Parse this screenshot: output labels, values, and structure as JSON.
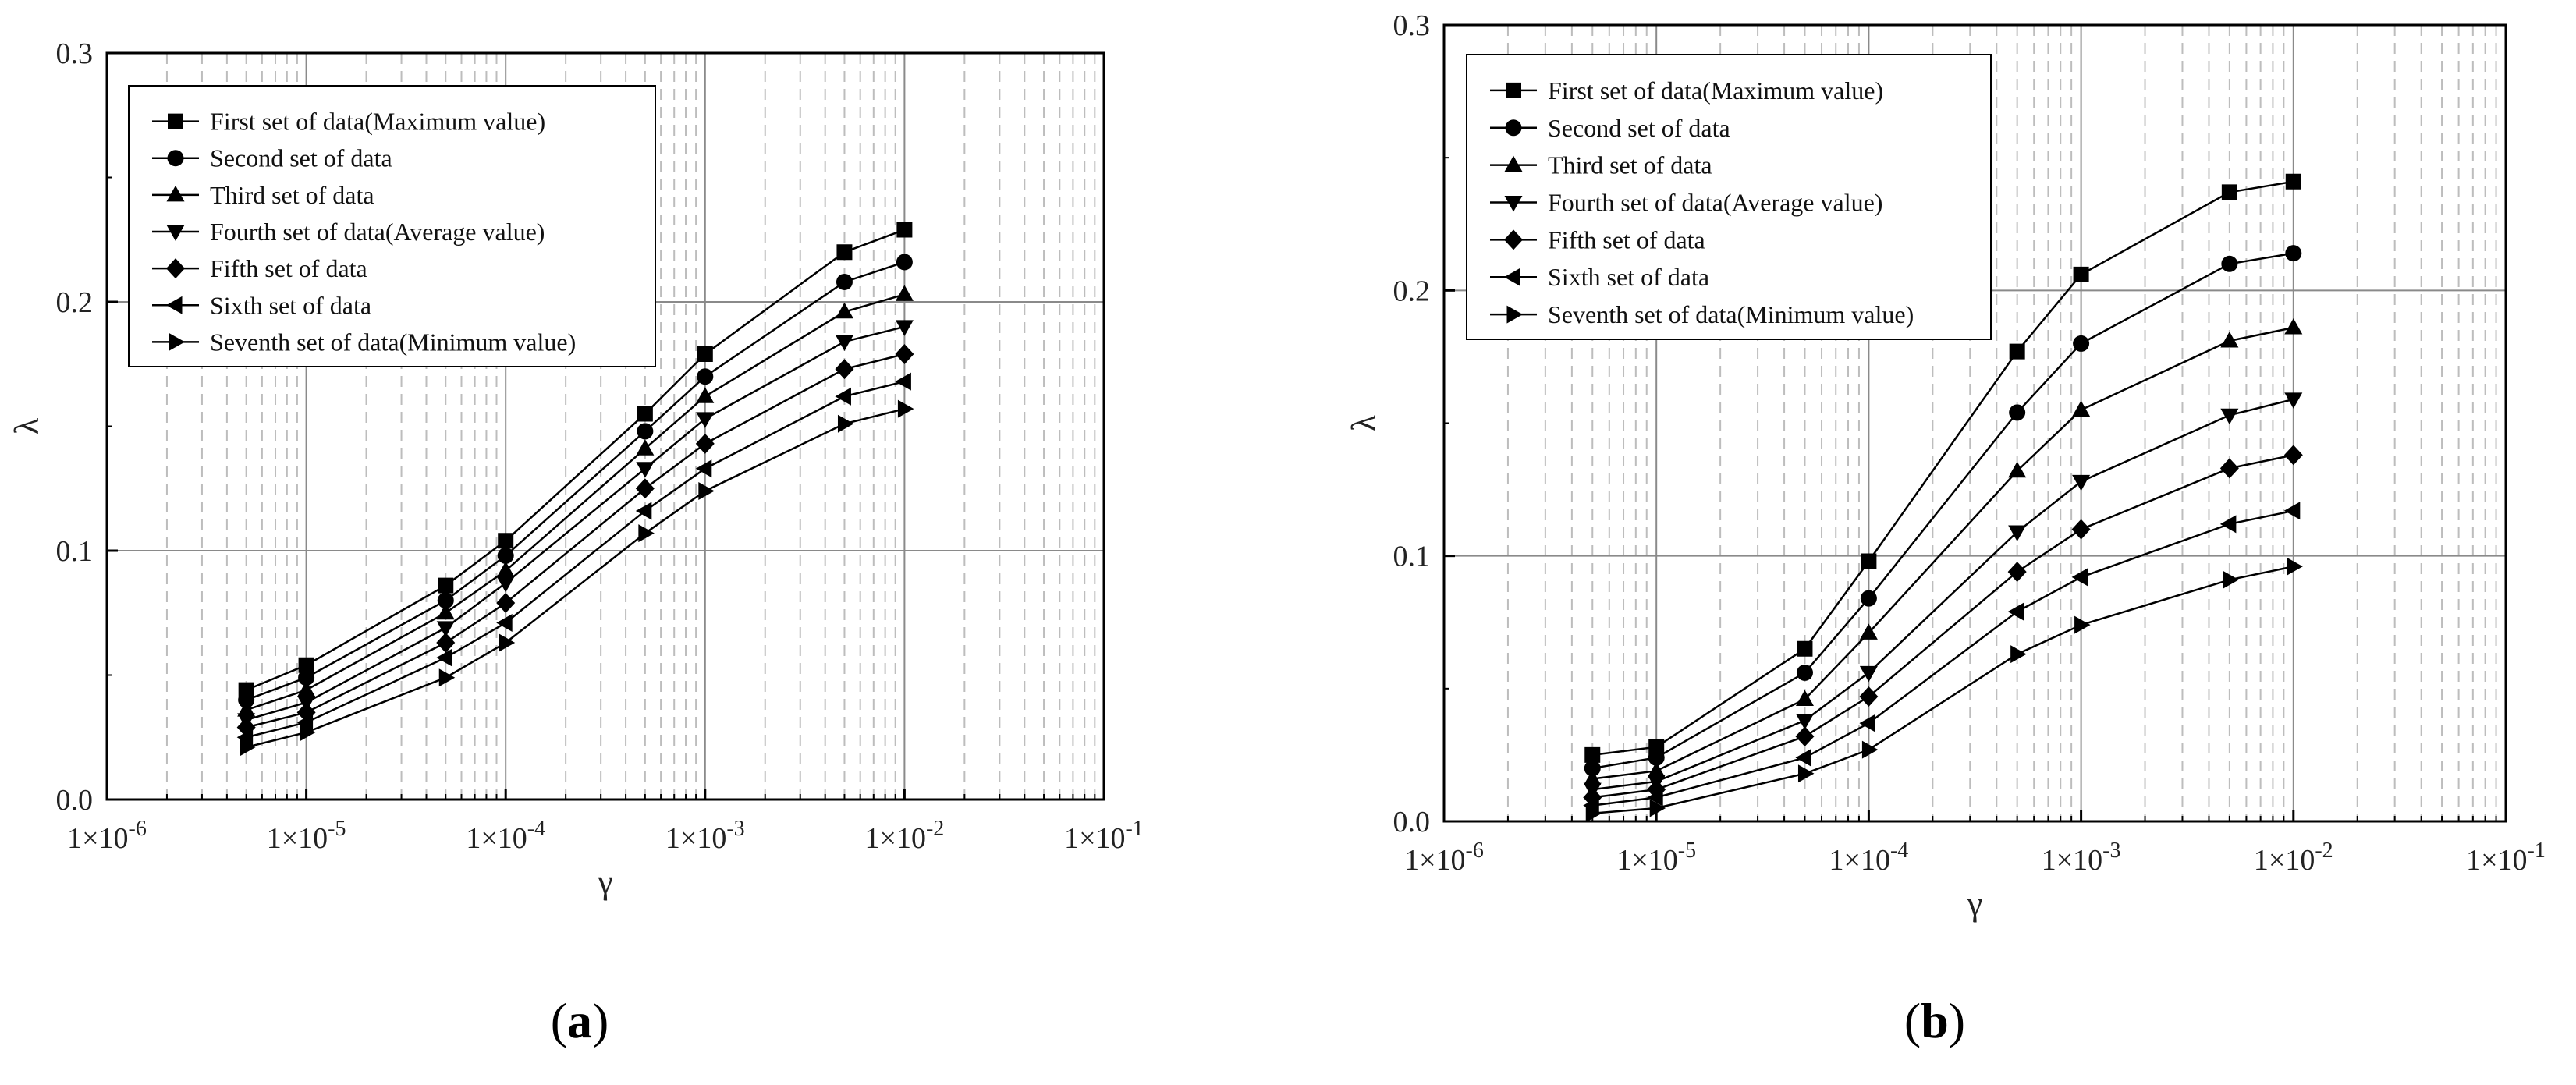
{
  "chart_data": [
    {
      "type": "line",
      "panel_label": "(a)",
      "panel_letter": "a",
      "xlabel": "γ",
      "ylabel": "λ",
      "xscale": "log",
      "xlim": [
        1e-06,
        0.1
      ],
      "ylim": [
        0,
        0.3
      ],
      "x_tick_labels": [
        "1×10-6",
        "1×10-5",
        "1×10-4",
        "1×10-3",
        "1×10-2",
        "1×10-1"
      ],
      "y_tick_labels": [
        "0.0",
        "0.1",
        "0.2",
        "0.3"
      ],
      "y_ticks": [
        0,
        0.1,
        0.2,
        0.3
      ],
      "grid": true,
      "legend_position": "top-left",
      "x": [
        5e-06,
        1e-05,
        5e-05,
        0.0001,
        0.0005,
        0.001,
        0.005,
        0.01
      ],
      "series": [
        {
          "name": "First set of data(Maximum value)",
          "marker": "square",
          "values": [
            0.044,
            0.054,
            0.086,
            0.104,
            0.155,
            0.179,
            0.22,
            0.229
          ]
        },
        {
          "name": "Second set of data",
          "marker": "circle",
          "values": [
            0.04,
            0.049,
            0.08,
            0.098,
            0.148,
            0.17,
            0.208,
            0.216
          ]
        },
        {
          "name": "Third set of data",
          "marker": "triangle-up",
          "values": [
            0.036,
            0.044,
            0.075,
            0.092,
            0.141,
            0.162,
            0.196,
            0.203
          ]
        },
        {
          "name": "Fourth set of data(Average value)",
          "marker": "triangle-down",
          "values": [
            0.032,
            0.039,
            0.069,
            0.087,
            0.133,
            0.153,
            0.184,
            0.19
          ]
        },
        {
          "name": "Fifth set of data",
          "marker": "diamond",
          "values": [
            0.029,
            0.035,
            0.063,
            0.079,
            0.125,
            0.143,
            0.173,
            0.179
          ]
        },
        {
          "name": "Sixth set of data",
          "marker": "triangle-left",
          "values": [
            0.025,
            0.031,
            0.057,
            0.071,
            0.116,
            0.133,
            0.162,
            0.168
          ]
        },
        {
          "name": "Seventh set of data(Minimum value)",
          "marker": "triangle-right",
          "values": [
            0.021,
            0.027,
            0.049,
            0.063,
            0.107,
            0.124,
            0.151,
            0.157
          ]
        }
      ]
    },
    {
      "type": "line",
      "panel_label": "(b)",
      "panel_letter": "b",
      "xlabel": "γ",
      "ylabel": "λ",
      "xscale": "log",
      "xlim": [
        1e-06,
        0.1
      ],
      "ylim": [
        0,
        0.3
      ],
      "x_tick_labels": [
        "1×10-6",
        "1×10-5",
        "1×10-4",
        "1×10-3",
        "1×10-2",
        "1×10-1"
      ],
      "y_tick_labels": [
        "0.0",
        "0.1",
        "0.2",
        "0.3"
      ],
      "y_ticks": [
        0,
        0.1,
        0.2,
        0.3
      ],
      "grid": true,
      "legend_position": "top-left",
      "x": [
        5e-06,
        1e-05,
        5e-05,
        0.0001,
        0.0005,
        0.001,
        0.005,
        0.01
      ],
      "series": [
        {
          "name": "First set of data(Maximum value)",
          "marker": "square",
          "values": [
            0.025,
            0.028,
            0.065,
            0.098,
            0.177,
            0.206,
            0.237,
            0.241
          ]
        },
        {
          "name": "Second set of data",
          "marker": "circle",
          "values": [
            0.02,
            0.024,
            0.056,
            0.084,
            0.154,
            0.18,
            0.21,
            0.214
          ]
        },
        {
          "name": "Third set of data",
          "marker": "triangle-up",
          "values": [
            0.016,
            0.019,
            0.046,
            0.071,
            0.132,
            0.155,
            0.181,
            0.186
          ]
        },
        {
          "name": "Fourth set of data(Average value)",
          "marker": "triangle-down",
          "values": [
            0.012,
            0.015,
            0.038,
            0.056,
            0.109,
            0.128,
            0.153,
            0.159
          ]
        },
        {
          "name": "Fifth set of data",
          "marker": "diamond",
          "values": [
            0.009,
            0.012,
            0.032,
            0.047,
            0.094,
            0.11,
            0.133,
            0.138
          ]
        },
        {
          "name": "Sixth set of data",
          "marker": "triangle-left",
          "values": [
            0.006,
            0.009,
            0.024,
            0.037,
            0.079,
            0.092,
            0.112,
            0.117
          ]
        },
        {
          "name": "Seventh set of data(Minimum value)",
          "marker": "triangle-right",
          "values": [
            0.003,
            0.005,
            0.018,
            0.027,
            0.063,
            0.074,
            0.091,
            0.096
          ]
        }
      ]
    }
  ]
}
